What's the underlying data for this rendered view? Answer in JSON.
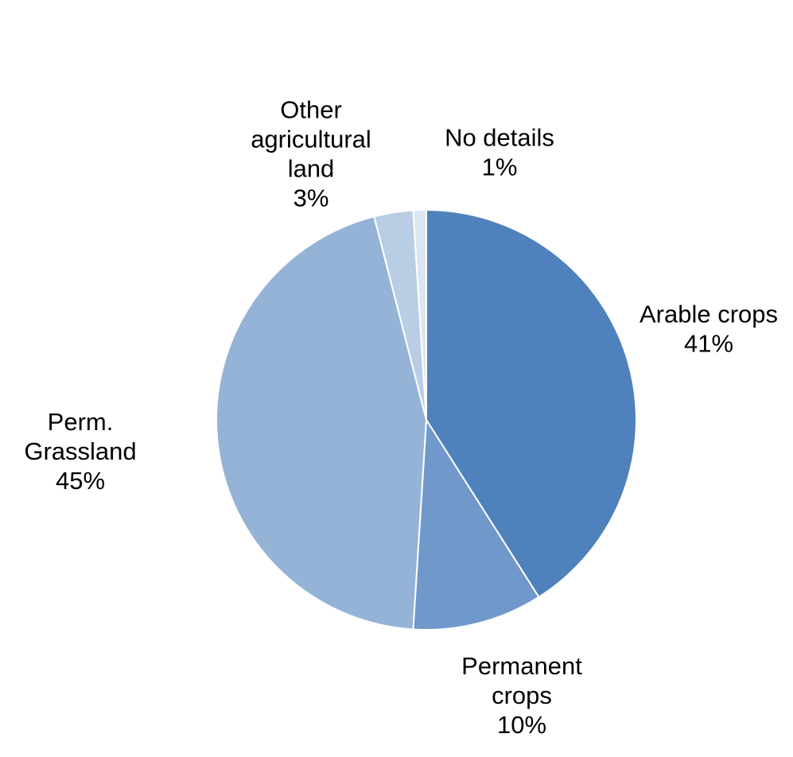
{
  "chart_data": {
    "type": "pie",
    "start_angle_deg": 0,
    "direction": "clockwise",
    "slices": [
      {
        "name": "Arable crops",
        "value": 41,
        "percent_label": "41%",
        "label_lines": [
          "Arable crops",
          "41%"
        ],
        "color": "#4f81bd"
      },
      {
        "name": "Permanent crops",
        "value": 10,
        "percent_label": "10%",
        "label_lines": [
          "Permanent",
          "crops",
          "10%"
        ],
        "color": "#7198cb"
      },
      {
        "name": "Perm. Grassland",
        "value": 45,
        "percent_label": "45%",
        "label_lines": [
          "Perm.",
          "Grassland",
          "45%"
        ],
        "color": "#95b3d7"
      },
      {
        "name": "Other agricultural land",
        "value": 3,
        "percent_label": "3%",
        "label_lines": [
          "Other",
          "agricultural",
          "land",
          "3%"
        ],
        "color": "#b9cde5"
      },
      {
        "name": "No details",
        "value": 1,
        "percent_label": "1%",
        "label_lines": [
          "No details",
          "1%"
        ],
        "color": "#dce6f2"
      }
    ]
  }
}
